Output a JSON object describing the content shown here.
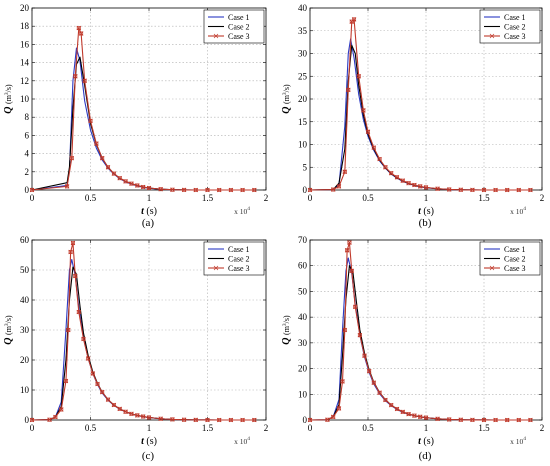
{
  "chart_data": [
    {
      "type": "line",
      "panel_label": "(a)",
      "xlabel": "t",
      "xunit": " (s)",
      "x_multiplier": "x 10",
      "x_multiplier_exp": "4",
      "ylabel": "Q",
      "yunit": "(m",
      "yunit_exp": "3",
      "yunit_tail": "/s)",
      "xlim": [
        0,
        20000
      ],
      "ylim": [
        0,
        20
      ],
      "xticks": [
        0,
        5000,
        10000,
        15000,
        20000
      ],
      "xticklabels": [
        "0",
        "0.5",
        "1",
        "1.5",
        "2"
      ],
      "yticks": [
        0,
        2,
        4,
        6,
        8,
        10,
        12,
        14,
        16,
        18,
        20
      ],
      "yticklabels": [
        "0",
        "2",
        "4",
        "6",
        "8",
        "10",
        "12",
        "14",
        "16",
        "18",
        "20"
      ],
      "grid": true,
      "legend_position": "top-right",
      "series": [
        {
          "name": "Case 1",
          "color": "#2b39c4",
          "marker": "none",
          "x": [
            0,
            3000,
            3200,
            3500,
            3800,
            4100,
            4500,
            5000,
            5500,
            6000,
            6500,
            7000,
            7500,
            8000,
            8500,
            9000,
            9500,
            10000,
            11000,
            12000,
            13000,
            14000,
            15000,
            16000,
            17000,
            18000,
            19000
          ],
          "y": [
            0,
            0.5,
            2.2,
            12.0,
            15.6,
            14.2,
            9.8,
            6.6,
            4.6,
            3.3,
            2.4,
            1.75,
            1.25,
            0.9,
            0.65,
            0.45,
            0.3,
            0.2,
            0.08,
            0.03,
            0.01,
            0,
            0,
            0,
            0,
            0,
            0
          ]
        },
        {
          "name": "Case 2",
          "color": "#000000",
          "marker": "none",
          "x": [
            0,
            3000,
            3200,
            3500,
            3800,
            4100,
            4500,
            5000,
            5500,
            6000,
            6500,
            7000,
            7500,
            8000,
            8500,
            9000,
            9500,
            10000,
            11000,
            12000,
            13000,
            14000,
            15000,
            16000,
            17000,
            18000,
            19000
          ],
          "y": [
            0,
            0.8,
            2.5,
            9.0,
            13.8,
            14.6,
            11.5,
            7.3,
            5.0,
            3.5,
            2.5,
            1.8,
            1.3,
            0.95,
            0.7,
            0.5,
            0.33,
            0.22,
            0.09,
            0.03,
            0.01,
            0,
            0,
            0,
            0,
            0,
            0
          ]
        },
        {
          "name": "Case 3",
          "color": "#c0392b",
          "marker": "x",
          "x": [
            0,
            3000,
            3400,
            3700,
            4000,
            4200,
            4500,
            5000,
            5500,
            6000,
            6500,
            7000,
            7500,
            8000,
            8500,
            9000,
            9500,
            10000,
            11000,
            12000,
            13000,
            14000,
            15000,
            16000,
            17000,
            18000,
            19000
          ],
          "y": [
            0,
            0.4,
            3.5,
            12.5,
            17.8,
            17.2,
            12.0,
            7.6,
            5.1,
            3.5,
            2.5,
            1.8,
            1.3,
            0.95,
            0.7,
            0.5,
            0.33,
            0.22,
            0.09,
            0.03,
            0.01,
            0,
            0,
            0,
            0,
            0,
            0
          ]
        }
      ]
    },
    {
      "type": "line",
      "panel_label": "(b)",
      "xlabel": "t",
      "xunit": " (s)",
      "x_multiplier": "x 10",
      "x_multiplier_exp": "4",
      "ylabel": "Q",
      "yunit": "(m",
      "yunit_exp": "3",
      "yunit_tail": "/s)",
      "xlim": [
        0,
        20000
      ],
      "ylim": [
        0,
        40
      ],
      "xticks": [
        0,
        5000,
        10000,
        15000,
        20000
      ],
      "xticklabels": [
        "0",
        "0.5",
        "1",
        "1.5",
        "2"
      ],
      "yticks": [
        0,
        5,
        10,
        15,
        20,
        25,
        30,
        35,
        40
      ],
      "yticklabels": [
        "0",
        "5",
        "10",
        "15",
        "20",
        "25",
        "30",
        "35",
        "40"
      ],
      "grid": true,
      "legend_position": "top-right",
      "series": [
        {
          "name": "Case 1",
          "color": "#2b39c4",
          "marker": "none",
          "x": [
            0,
            2000,
            2500,
            3000,
            3300,
            3500,
            3800,
            4200,
            4600,
            5000,
            5500,
            6000,
            6500,
            7000,
            7500,
            8000,
            8500,
            9000,
            9500,
            10000,
            11000,
            12000,
            13000,
            14000,
            15000,
            16000,
            17000,
            18000,
            19000
          ],
          "y": [
            0,
            0.1,
            1.2,
            14.0,
            30.0,
            33.2,
            29.0,
            21.0,
            15.5,
            11.8,
            8.7,
            6.4,
            4.8,
            3.5,
            2.6,
            1.9,
            1.4,
            1.0,
            0.7,
            0.5,
            0.25,
            0.1,
            0.05,
            0.02,
            0,
            0,
            0,
            0,
            0
          ]
        },
        {
          "name": "Case 2",
          "color": "#000000",
          "marker": "none",
          "x": [
            0,
            2000,
            2500,
            3000,
            3300,
            3600,
            3900,
            4200,
            4600,
            5000,
            5500,
            6000,
            6500,
            7000,
            7500,
            8000,
            8500,
            9000,
            9500,
            10000,
            11000,
            12000,
            13000,
            14000,
            15000,
            16000,
            17000,
            18000,
            19000
          ],
          "y": [
            0,
            0.1,
            1.5,
            9.0,
            24.0,
            31.8,
            30.0,
            23.0,
            16.5,
            12.3,
            9.0,
            6.6,
            4.9,
            3.6,
            2.7,
            2.0,
            1.45,
            1.05,
            0.75,
            0.55,
            0.27,
            0.12,
            0.05,
            0.02,
            0,
            0,
            0,
            0,
            0
          ]
        },
        {
          "name": "Case 3",
          "color": "#c0392b",
          "marker": "x",
          "x": [
            0,
            2000,
            2500,
            3000,
            3300,
            3600,
            3800,
            4200,
            4600,
            5000,
            5500,
            6000,
            6500,
            7000,
            7500,
            8000,
            8500,
            9000,
            9500,
            10000,
            11000,
            12000,
            13000,
            14000,
            15000,
            16000,
            17000,
            18000,
            19000
          ],
          "y": [
            0,
            0.1,
            0.8,
            4.0,
            22.0,
            37.0,
            37.5,
            25.0,
            17.5,
            12.8,
            9.3,
            6.8,
            5.0,
            3.7,
            2.8,
            2.05,
            1.5,
            1.1,
            0.8,
            0.58,
            0.28,
            0.12,
            0.05,
            0.02,
            0,
            0,
            0,
            0,
            0
          ]
        }
      ]
    },
    {
      "type": "line",
      "panel_label": "(c)",
      "xlabel": "t",
      "xunit": " (s)",
      "x_multiplier": "x 10",
      "x_multiplier_exp": "4",
      "ylabel": "Q",
      "yunit": "(m",
      "yunit_exp": "3",
      "yunit_tail": "/s)",
      "xlim": [
        0,
        20000
      ],
      "ylim": [
        0,
        60
      ],
      "xticks": [
        0,
        5000,
        10000,
        15000,
        20000
      ],
      "xticklabels": [
        "0",
        "0.5",
        "1",
        "1.5",
        "2"
      ],
      "yticks": [
        0,
        10,
        20,
        30,
        40,
        50,
        60
      ],
      "yticklabels": [
        "0",
        "10",
        "20",
        "30",
        "40",
        "50",
        "60"
      ],
      "grid": true,
      "legend_position": "top-right",
      "series": [
        {
          "name": "Case 1",
          "color": "#2b39c4",
          "marker": "none",
          "x": [
            0,
            1500,
            2000,
            2500,
            2900,
            3200,
            3400,
            3700,
            4000,
            4400,
            4800,
            5200,
            5600,
            6000,
            6500,
            7000,
            7500,
            8000,
            8500,
            9000,
            9500,
            10000,
            11000,
            12000,
            13000,
            14000,
            15000,
            16000,
            17000,
            18000,
            19000
          ],
          "y": [
            0,
            0.1,
            1.0,
            6.0,
            30.0,
            50.0,
            53.5,
            48.0,
            37.5,
            27.5,
            20.5,
            15.5,
            11.8,
            9.0,
            6.6,
            4.9,
            3.6,
            2.7,
            2.0,
            1.5,
            1.1,
            0.8,
            0.4,
            0.18,
            0.08,
            0.03,
            0.01,
            0,
            0,
            0,
            0
          ]
        },
        {
          "name": "Case 2",
          "color": "#000000",
          "marker": "none",
          "x": [
            0,
            1500,
            2000,
            2500,
            2900,
            3200,
            3500,
            3800,
            4100,
            4400,
            4800,
            5200,
            5600,
            6000,
            6500,
            7000,
            7500,
            8000,
            8500,
            9000,
            9500,
            10000,
            11000,
            12000,
            13000,
            14000,
            15000,
            16000,
            17000,
            18000,
            19000
          ],
          "y": [
            0,
            0.1,
            1.0,
            4.5,
            20.0,
            40.0,
            51.0,
            48.5,
            38.0,
            29.0,
            21.5,
            16.0,
            12.2,
            9.3,
            6.8,
            5.0,
            3.7,
            2.75,
            2.05,
            1.55,
            1.15,
            0.85,
            0.42,
            0.2,
            0.09,
            0.04,
            0.01,
            0,
            0,
            0,
            0
          ]
        },
        {
          "name": "Case 3",
          "color": "#c0392b",
          "marker": "x",
          "x": [
            0,
            1500,
            2000,
            2500,
            2900,
            3100,
            3300,
            3500,
            3700,
            4000,
            4400,
            4800,
            5200,
            5600,
            6000,
            6500,
            7000,
            7500,
            8000,
            8500,
            9000,
            9500,
            10000,
            11000,
            12000,
            13000,
            14000,
            15000,
            16000,
            17000,
            18000,
            19000
          ],
          "y": [
            0,
            0.1,
            1.0,
            3.5,
            13.0,
            30.0,
            56.0,
            59.0,
            48.0,
            36.0,
            27.0,
            20.5,
            15.5,
            12.0,
            9.3,
            6.8,
            5.0,
            3.7,
            2.75,
            2.05,
            1.55,
            1.15,
            0.85,
            0.42,
            0.2,
            0.09,
            0.04,
            0.01,
            0,
            0,
            0,
            0
          ]
        }
      ]
    },
    {
      "type": "line",
      "panel_label": "(d)",
      "xlabel": "t",
      "xunit": " (s)",
      "x_multiplier": "x 10",
      "x_multiplier_exp": "4",
      "ylabel": "Q",
      "yunit": "(m",
      "yunit_exp": "3",
      "yunit_tail": "/s)",
      "xlim": [
        0,
        20000
      ],
      "ylim": [
        0,
        70
      ],
      "xticks": [
        0,
        5000,
        10000,
        15000,
        20000
      ],
      "xticklabels": [
        "0",
        "0.5",
        "1",
        "1.5",
        "2"
      ],
      "yticks": [
        0,
        10,
        20,
        30,
        40,
        50,
        60,
        70
      ],
      "yticklabels": [
        "0",
        "10",
        "20",
        "30",
        "40",
        "50",
        "60",
        "70"
      ],
      "grid": true,
      "legend_position": "top-right",
      "series": [
        {
          "name": "Case 1",
          "color": "#2b39c4",
          "marker": "none",
          "x": [
            0,
            1500,
            2000,
            2500,
            2800,
            3100,
            3300,
            3600,
            3900,
            4300,
            4700,
            5100,
            5500,
            6000,
            6500,
            7000,
            7500,
            8000,
            8500,
            9000,
            9500,
            10000,
            11000,
            12000,
            13000,
            14000,
            15000,
            16000,
            17000,
            18000,
            19000
          ],
          "y": [
            0,
            0.1,
            1.2,
            8.0,
            35.0,
            58.0,
            63.0,
            57.0,
            45.0,
            33.0,
            24.5,
            18.5,
            14.0,
            10.2,
            7.5,
            5.6,
            4.1,
            3.0,
            2.2,
            1.65,
            1.2,
            0.9,
            0.45,
            0.2,
            0.09,
            0.04,
            0.01,
            0,
            0,
            0,
            0
          ]
        },
        {
          "name": "Case 2",
          "color": "#000000",
          "marker": "none",
          "x": [
            0,
            1500,
            2000,
            2500,
            2800,
            3100,
            3400,
            3700,
            4000,
            4300,
            4700,
            5100,
            5500,
            6000,
            6500,
            7000,
            7500,
            8000,
            8500,
            9000,
            9500,
            10000,
            11000,
            12000,
            13000,
            14000,
            15000,
            16000,
            17000,
            18000,
            19000
          ],
          "y": [
            0,
            0.1,
            1.2,
            6.0,
            25.0,
            47.0,
            60.0,
            57.5,
            46.0,
            35.0,
            26.0,
            19.5,
            14.7,
            10.7,
            7.9,
            5.8,
            4.3,
            3.15,
            2.3,
            1.7,
            1.25,
            0.92,
            0.46,
            0.21,
            0.09,
            0.04,
            0.01,
            0,
            0,
            0,
            0
          ]
        },
        {
          "name": "Case 3",
          "color": "#c0392b",
          "marker": "x",
          "x": [
            0,
            1500,
            2000,
            2500,
            2800,
            3000,
            3200,
            3400,
            3600,
            3900,
            4300,
            4700,
            5100,
            5500,
            6000,
            6500,
            7000,
            7500,
            8000,
            8500,
            9000,
            9500,
            10000,
            11000,
            12000,
            13000,
            14000,
            15000,
            16000,
            17000,
            18000,
            19000
          ],
          "y": [
            0,
            0.1,
            1.2,
            4.5,
            15.0,
            35.0,
            66.0,
            69.0,
            58.0,
            44.0,
            33.0,
            25.0,
            19.0,
            14.5,
            10.6,
            7.8,
            5.8,
            4.3,
            3.15,
            2.3,
            1.7,
            1.25,
            0.92,
            0.46,
            0.21,
            0.09,
            0.04,
            0.01,
            0,
            0,
            0,
            0
          ]
        }
      ]
    }
  ]
}
